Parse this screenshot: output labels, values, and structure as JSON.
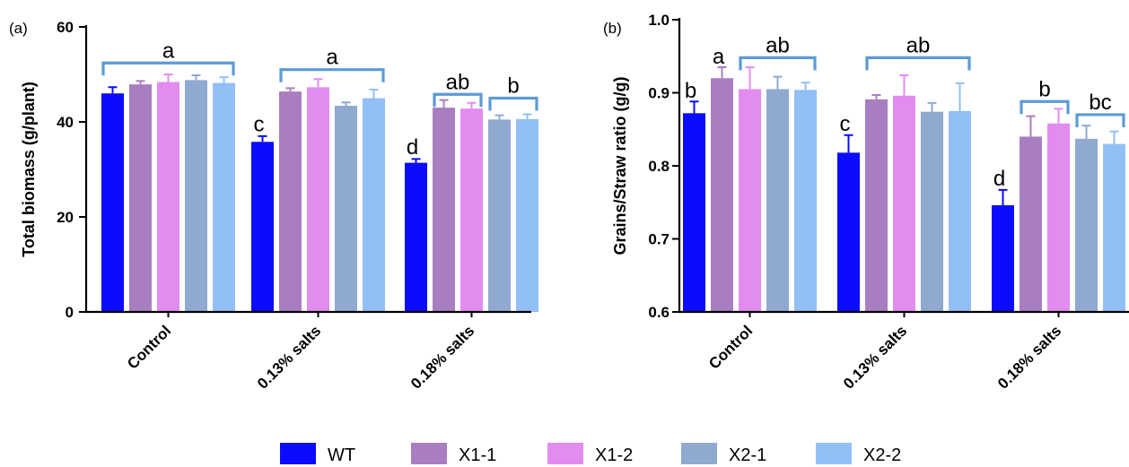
{
  "colors": {
    "WT": "#0b0bff",
    "X1-1": "#a97ec1",
    "X1-2": "#e28cf0",
    "X2-1": "#8fa9d1",
    "X2-2": "#92c0f6",
    "bracket": "#5b9bd5"
  },
  "legend": {
    "items": [
      {
        "label": "WT",
        "color": "#0b0bff"
      },
      {
        "label": "X1-1",
        "color": "#a97ec1"
      },
      {
        "label": "X1-2",
        "color": "#e28cf0"
      },
      {
        "label": "X2-1",
        "color": "#8fa9d1"
      },
      {
        "label": "X2-2",
        "color": "#92c0f6"
      }
    ]
  },
  "chart_data": [
    {
      "panel": "(a)",
      "type": "bar",
      "title": "",
      "xlabel": "",
      "ylabel": "Total biomass (g/plant)",
      "ylim": [
        0,
        60
      ],
      "yticks": [
        0,
        20,
        40,
        60
      ],
      "categories": [
        "Control",
        "0.13% salts",
        "0.18% salts"
      ],
      "series": [
        {
          "name": "WT",
          "values": [
            46.0,
            35.8,
            31.4
          ],
          "errors": [
            1.3,
            1.2,
            0.8
          ]
        },
        {
          "name": "X1-1",
          "values": [
            47.9,
            46.4,
            43.0
          ],
          "errors": [
            0.7,
            0.7,
            1.6
          ]
        },
        {
          "name": "X1-2",
          "values": [
            48.4,
            47.3,
            42.8
          ],
          "errors": [
            1.6,
            1.7,
            1.2
          ]
        },
        {
          "name": "X2-1",
          "values": [
            48.8,
            43.4,
            40.5
          ],
          "errors": [
            1.0,
            0.7,
            0.9
          ]
        },
        {
          "name": "X2-2",
          "values": [
            48.2,
            45.0,
            40.6
          ],
          "errors": [
            1.2,
            1.8,
            1.0
          ]
        }
      ],
      "annotations": [
        {
          "text": "a",
          "group": 0,
          "from": 0,
          "to": 4,
          "bracket_y": 52.4
        },
        {
          "text": "c",
          "group": 1,
          "bar": 0,
          "y": 38.0
        },
        {
          "text": "a",
          "group": 1,
          "from": 1,
          "to": 4,
          "bracket_y": 51.0
        },
        {
          "text": "d",
          "group": 2,
          "bar": 0,
          "y": 33.2
        },
        {
          "text": "ab",
          "group": 2,
          "from": 1,
          "to": 2,
          "bracket_y": 45.8
        },
        {
          "text": "b",
          "group": 2,
          "from": 3,
          "to": 4,
          "bracket_y": 45.0
        }
      ]
    },
    {
      "panel": "(b)",
      "type": "bar",
      "title": "",
      "xlabel": "",
      "ylabel": "Grains/Straw ratio (g/g)",
      "ylim": [
        0.6,
        1.0
      ],
      "yticks": [
        "0.6",
        "0.7",
        "0.8",
        "0.9",
        "1.0"
      ],
      "categories": [
        "Control",
        "0.13% salts",
        "0.18% salts"
      ],
      "series": [
        {
          "name": "WT",
          "values": [
            0.872,
            0.818,
            0.746
          ],
          "errors": [
            0.016,
            0.024,
            0.021
          ]
        },
        {
          "name": "X1-1",
          "values": [
            0.92,
            0.891,
            0.84
          ],
          "errors": [
            0.015,
            0.006,
            0.028
          ]
        },
        {
          "name": "X1-2",
          "values": [
            0.905,
            0.896,
            0.858
          ],
          "errors": [
            0.03,
            0.028,
            0.02
          ]
        },
        {
          "name": "X2-1",
          "values": [
            0.905,
            0.874,
            0.837
          ],
          "errors": [
            0.017,
            0.012,
            0.018
          ]
        },
        {
          "name": "X2-2",
          "values": [
            0.904,
            0.875,
            0.83
          ],
          "errors": [
            0.01,
            0.038,
            0.017
          ]
        }
      ],
      "annotations": [
        {
          "text": "b",
          "group": 0,
          "bar": 0,
          "y": 0.893
        },
        {
          "text": "a",
          "group": 0,
          "bar": 1,
          "y": 0.94
        },
        {
          "text": "ab",
          "group": 0,
          "from": 2,
          "to": 4,
          "bracket_y": 0.948
        },
        {
          "text": "ab",
          "group": 1,
          "from": 1,
          "to": 4,
          "bracket_y": 0.948
        },
        {
          "text": "c",
          "group": 1,
          "bar": 0,
          "y": 0.848
        },
        {
          "text": "d",
          "group": 2,
          "bar": 0,
          "y": 0.773
        },
        {
          "text": "b",
          "group": 2,
          "from": 1,
          "to": 2,
          "bracket_y": 0.888
        },
        {
          "text": "bc",
          "group": 2,
          "from": 3,
          "to": 4,
          "bracket_y": 0.87
        }
      ]
    }
  ]
}
